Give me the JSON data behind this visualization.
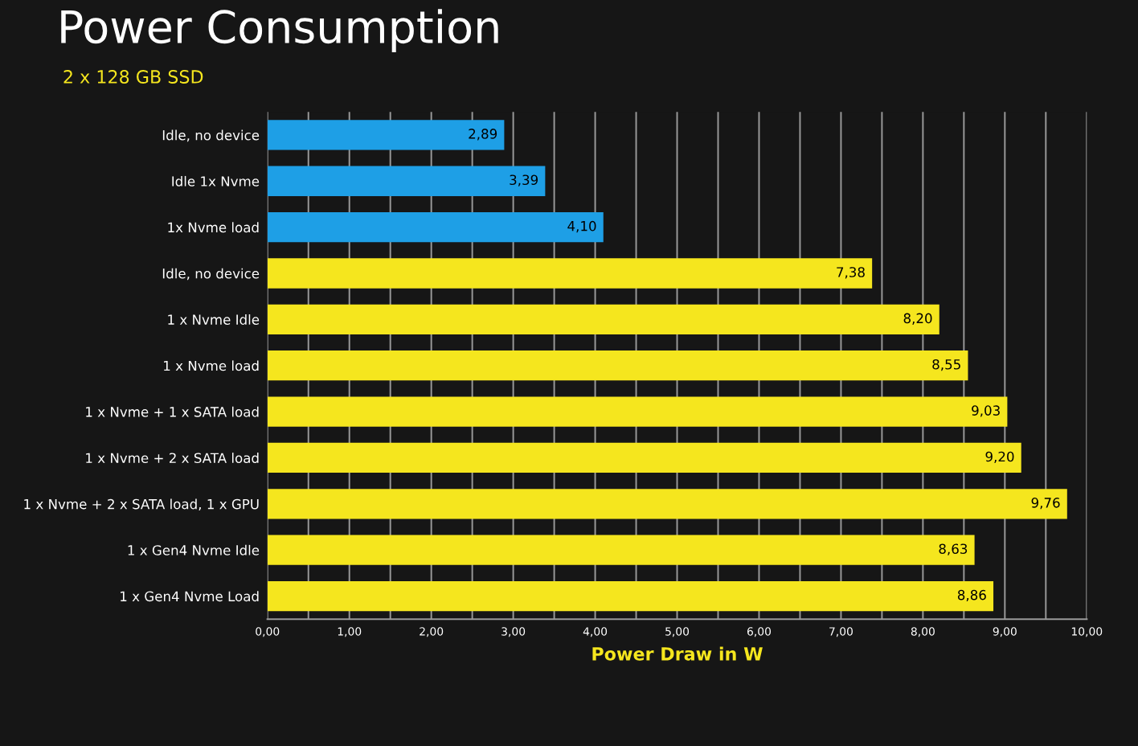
{
  "chart_data": {
    "type": "bar",
    "orientation": "horizontal",
    "title": "Power Consumption",
    "subtitle": "2 x 128 GB SSD",
    "categories": [
      "Idle, no device",
      "Idle 1x Nvme",
      "1x Nvme load",
      "Idle, no device",
      "1 x Nvme Idle",
      "1 x Nvme load",
      "1 x Nvme + 1 x SATA load",
      "1 x Nvme + 2 x SATA load",
      "1 x Nvme + 2 x SATA load, 1 x GPU",
      "1 x Gen4 Nvme Idle",
      "1 x Gen4 Nvme Load"
    ],
    "values": [
      2.89,
      3.39,
      4.1,
      7.38,
      8.2,
      8.55,
      9.03,
      9.2,
      9.76,
      8.63,
      8.86
    ],
    "value_labels": [
      "2,89",
      "3,39",
      "4,10",
      "7,38",
      "8,20",
      "8,55",
      "9,03",
      "9,20",
      "9,76",
      "8,63",
      "8,86"
    ],
    "colors": [
      "#1e9fe6",
      "#1e9fe6",
      "#1e9fe6",
      "#f5e61e",
      "#f5e61e",
      "#f5e61e",
      "#f5e61e",
      "#f5e61e",
      "#f5e61e",
      "#f5e61e",
      "#f5e61e"
    ],
    "xlabel": "Power Draw in W",
    "xlim": [
      0,
      10
    ],
    "xticks": [
      {
        "value": 0,
        "label": "0,00"
      },
      {
        "value": 0.5,
        "label": null
      },
      {
        "value": 1,
        "label": "1,00"
      },
      {
        "value": 1.5,
        "label": null
      },
      {
        "value": 2,
        "label": "2,00"
      },
      {
        "value": 2.5,
        "label": null
      },
      {
        "value": 3,
        "label": "3,00"
      },
      {
        "value": 3.5,
        "label": null
      },
      {
        "value": 4,
        "label": "4,00"
      },
      {
        "value": 4.5,
        "label": null
      },
      {
        "value": 5,
        "label": "5,00"
      },
      {
        "value": 5.5,
        "label": null
      },
      {
        "value": 6,
        "label": "6,00"
      },
      {
        "value": 6.5,
        "label": null
      },
      {
        "value": 7,
        "label": "7,00"
      },
      {
        "value": 7.5,
        "label": null
      },
      {
        "value": 8,
        "label": "8,00"
      },
      {
        "value": 8.5,
        "label": null
      },
      {
        "value": 9,
        "label": "9,00"
      },
      {
        "value": 9.5,
        "label": null
      },
      {
        "value": 10,
        "label": "10,00"
      }
    ],
    "grid": "x",
    "legend": false
  }
}
